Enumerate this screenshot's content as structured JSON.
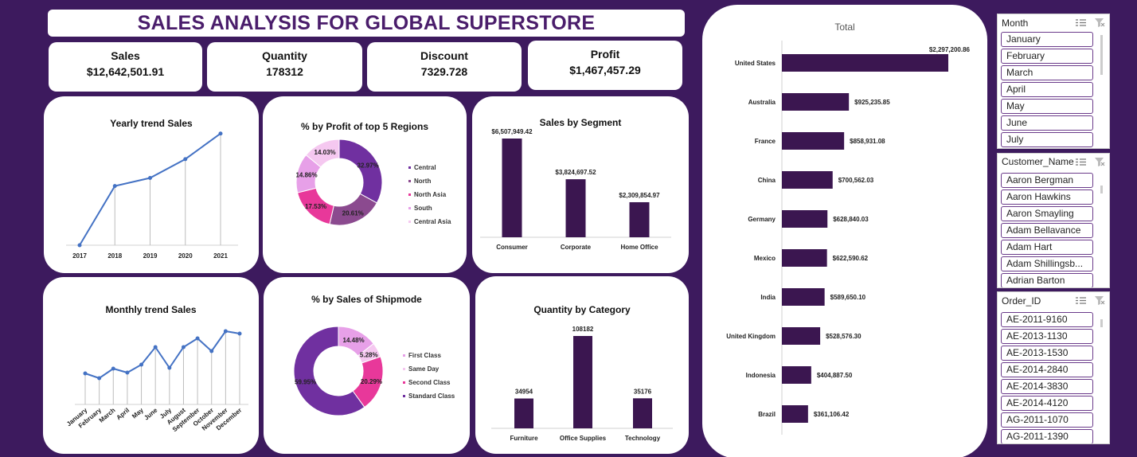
{
  "title": "SALES ANALYSIS FOR GLOBAL SUPERSTORE",
  "kpis": [
    {
      "label": "Sales",
      "value": "$12,642,501.91"
    },
    {
      "label": "Quantity",
      "value": "178312"
    },
    {
      "label": "Discount",
      "value": "7329.728"
    },
    {
      "label": "Profit",
      "value": "$1,467,457.29"
    }
  ],
  "colors": {
    "background": "#3d1a5e",
    "line": "#4472c4",
    "bar": "#3b1650",
    "title_text": "#4a1d6b"
  },
  "chart_data": [
    {
      "id": "yearly",
      "type": "line",
      "title": "Yearly trend Sales",
      "categories": [
        "2017",
        "2018",
        "2019",
        "2020",
        "2021"
      ],
      "values": [
        0,
        0.44,
        0.5,
        0.64,
        0.83
      ]
    },
    {
      "id": "monthly",
      "type": "line",
      "title": "Monthly trend Sales",
      "categories": [
        "January",
        "February",
        "March",
        "April",
        "May",
        "June",
        "July",
        "August",
        "September",
        "October",
        "November",
        "December"
      ],
      "values": [
        0.39,
        0.33,
        0.45,
        0.4,
        0.5,
        0.72,
        0.46,
        0.72,
        0.83,
        0.67,
        0.92,
        0.89
      ]
    },
    {
      "id": "regions",
      "type": "pie",
      "title": "% by Profit of top 5 Regions",
      "labels": [
        "Central",
        "North",
        "North Asia",
        "South",
        "Central Asia"
      ],
      "values": [
        32.97,
        20.61,
        17.53,
        14.86,
        14.03
      ],
      "data_labels": [
        "32.97%",
        "20.61%",
        "17.53%",
        "14.86%",
        "14.03%"
      ],
      "colors": [
        "#7030a0",
        "#8b4a8f",
        "#e8389a",
        "#e7a0e8",
        "#f5c8f0"
      ]
    },
    {
      "id": "segment",
      "type": "bar",
      "title": "Sales by Segment",
      "categories": [
        "Consumer",
        "Corporate",
        "Home Office"
      ],
      "values": [
        6507949.42,
        3824697.52,
        2309854.97
      ],
      "data_labels": [
        "$6,507,949.42",
        "$3,824,697.52",
        "$2,309,854.97"
      ]
    },
    {
      "id": "shipmode",
      "type": "pie",
      "title": "% by Sales of  Shipmode",
      "labels": [
        "First Class",
        "Same Day",
        "Second Class",
        "Standard Class"
      ],
      "values": [
        14.48,
        5.28,
        20.29,
        59.95
      ],
      "data_labels": [
        "14.48%",
        "5.28%",
        "20.29%",
        "59.95%"
      ],
      "colors": [
        "#e7a0e8",
        "#f5c8f0",
        "#e8389a",
        "#7030a0"
      ]
    },
    {
      "id": "category",
      "type": "bar",
      "title": "Quantity by Category",
      "categories": [
        "Furniture",
        "Office Supplies",
        "Technology"
      ],
      "values": [
        34954,
        108182,
        35176
      ],
      "data_labels": [
        "34954",
        "108182",
        "35176"
      ]
    },
    {
      "id": "country",
      "type": "bar",
      "orientation": "horizontal",
      "title": "Total",
      "categories": [
        "United States",
        "Australia",
        "France",
        "China",
        "Germany",
        "Mexico",
        "India",
        "United Kingdom",
        "Indonesia",
        "Brazil"
      ],
      "values": [
        2297200.86,
        925235.85,
        858931.08,
        700562.03,
        628840.03,
        622590.62,
        589650.1,
        528576.3,
        404887.5,
        361106.42
      ],
      "data_labels": [
        "$2,297,200.86",
        "$925,235.85",
        "$858,931.08",
        "$700,562.03",
        "$628,840.03",
        "$622,590.62",
        "$589,650.10",
        "$528,576.30",
        "$404,887.50",
        "$361,106.42"
      ]
    }
  ],
  "slicers": [
    {
      "name": "month",
      "title": "Month",
      "items": [
        "January",
        "February",
        "March",
        "April",
        "May",
        "June",
        "July"
      ]
    },
    {
      "name": "customer",
      "title": "Customer_Name",
      "items": [
        "Aaron Bergman",
        "Aaron Hawkins",
        "Aaron Smayling",
        "Adam Bellavance",
        "Adam Hart",
        "Adam Shillingsb...",
        "Adrian Barton"
      ]
    },
    {
      "name": "order",
      "title": "Order_ID",
      "items": [
        "AE-2011-9160",
        "AE-2013-1130",
        "AE-2013-1530",
        "AE-2014-2840",
        "AE-2014-3830",
        "AE-2014-4120",
        "AG-2011-1070",
        "AG-2011-1390"
      ]
    }
  ]
}
